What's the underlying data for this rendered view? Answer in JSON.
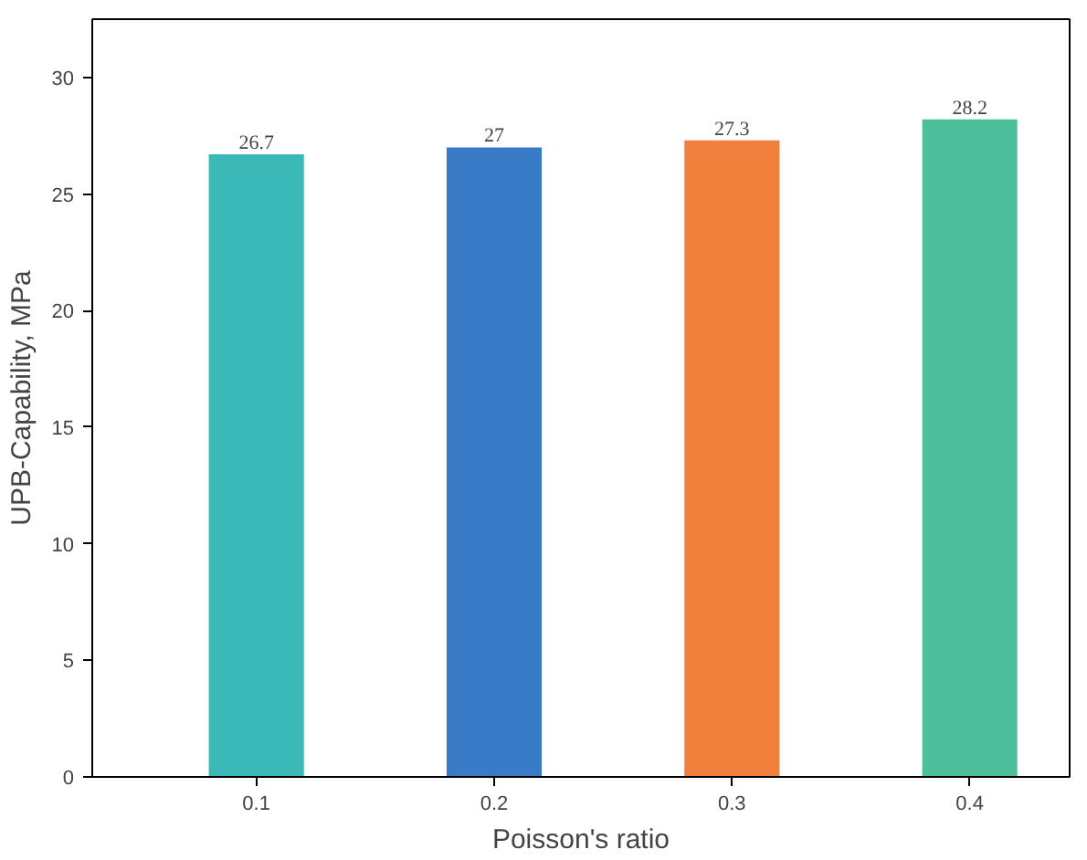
{
  "chart_data": {
    "type": "bar",
    "xlabel": "Poisson's ratio",
    "ylabel": "UPB-Capability, MPa",
    "categories": [
      "0.1",
      "0.2",
      "0.3",
      "0.4"
    ],
    "values": [
      26.7,
      27,
      27.3,
      28.2
    ],
    "colors": [
      "#3bb9b9",
      "#3a7bc8",
      "#f0803c",
      "#4dbf9a"
    ],
    "ylim": [
      0,
      32.5
    ],
    "yticks": [
      0,
      5,
      10,
      15,
      20,
      25,
      30
    ],
    "grid": false,
    "data_labels": true
  }
}
